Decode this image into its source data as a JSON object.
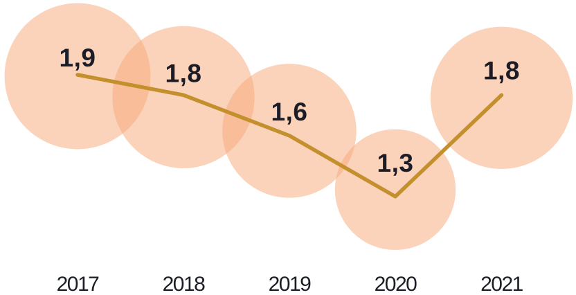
{
  "chart_data": {
    "type": "line",
    "subtype": "bubble-line",
    "title": "",
    "categories": [
      "2017",
      "2018",
      "2019",
      "2020",
      "2021"
    ],
    "values": [
      1.9,
      1.8,
      1.6,
      1.3,
      1.8
    ],
    "value_labels": [
      "1,9",
      "1,8",
      "1,6",
      "1,3",
      "1,8"
    ],
    "decimal_separator": ",",
    "bubble_area_proportional_to_value": true,
    "legend": "none",
    "grid": false,
    "axes": {
      "y_axis_shown": false,
      "x_axis_line_shown": false,
      "x_tick_labels_shown": true
    },
    "ylim": [
      1.0,
      2.0
    ],
    "colors": {
      "background": "#ffffff",
      "bubble_fill": "#f8a878",
      "bubble_opacity": 0.5,
      "line": "#c4902e",
      "value_label": "#1c1c26",
      "year_label": "#1c1e26"
    }
  }
}
